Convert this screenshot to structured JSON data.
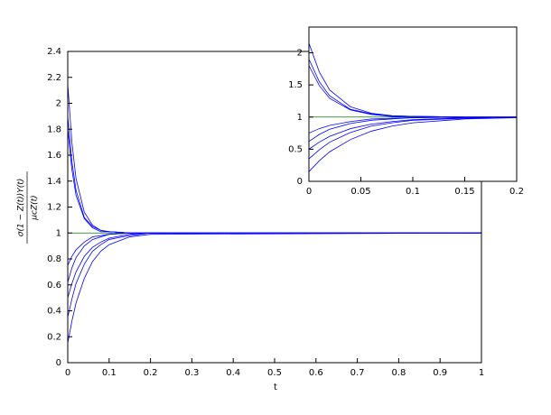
{
  "chart_data": [
    {
      "type": "line",
      "xlabel": "t",
      "ylabel": {
        "numerator": "σ(1 − Z(t))Y(t)",
        "denominator": "μcZ(t)"
      },
      "xlim": [
        0,
        1
      ],
      "ylim": [
        0,
        2.4
      ],
      "xticks": [
        0,
        0.1,
        0.2,
        0.3,
        0.4,
        0.5,
        0.6,
        0.7,
        0.8,
        0.9,
        1
      ],
      "yticks": [
        0,
        0.2,
        0.4,
        0.6,
        0.8,
        1,
        1.2,
        1.4,
        1.6,
        1.8,
        2,
        2.2,
        2.4
      ],
      "x": [
        0,
        0.01,
        0.02,
        0.04,
        0.06,
        0.08,
        0.1,
        0.15,
        0.2,
        1
      ],
      "series": [
        {
          "color": "#008000",
          "values": [
            1,
            1,
            1,
            1,
            1,
            1,
            1,
            1,
            1,
            1
          ]
        },
        {
          "color": "#0000ff",
          "values": [
            2.15,
            1.7,
            1.42,
            1.16,
            1.06,
            1.02,
            1.01,
            1.0,
            1.0,
            1.0
          ]
        },
        {
          "color": "#0000ff",
          "values": [
            1.9,
            1.55,
            1.33,
            1.12,
            1.05,
            1.02,
            1.01,
            1.0,
            1.0,
            1.0
          ]
        },
        {
          "color": "#0000ff",
          "values": [
            1.8,
            1.49,
            1.29,
            1.11,
            1.04,
            1.01,
            1.01,
            1.0,
            1.0,
            1.0
          ]
        },
        {
          "color": "#0000ff",
          "values": [
            0.75,
            0.82,
            0.87,
            0.93,
            0.97,
            0.98,
            0.99,
            1.0,
            1.0,
            1.0
          ]
        },
        {
          "color": "#0000ff",
          "values": [
            0.62,
            0.73,
            0.81,
            0.9,
            0.95,
            0.97,
            0.99,
            1.0,
            1.0,
            1.0
          ]
        },
        {
          "color": "#0000ff",
          "values": [
            0.5,
            0.61,
            0.7,
            0.82,
            0.89,
            0.93,
            0.96,
            0.99,
            1.0,
            1.0
          ]
        },
        {
          "color": "#0000ff",
          "values": [
            0.35,
            0.49,
            0.61,
            0.76,
            0.86,
            0.91,
            0.95,
            0.98,
            1.0,
            1.0
          ]
        },
        {
          "color": "#0000ff",
          "values": [
            0.15,
            0.32,
            0.46,
            0.65,
            0.78,
            0.86,
            0.91,
            0.97,
            0.99,
            1.0
          ]
        }
      ]
    },
    {
      "type": "line",
      "xlim": [
        0,
        0.2
      ],
      "ylim": [
        0,
        2.4
      ],
      "xticks": [
        0,
        0.05,
        0.1,
        0.15,
        0.2
      ],
      "yticks": [
        0,
        0.5,
        1,
        1.5,
        2
      ],
      "x": [
        0,
        0.01,
        0.02,
        0.04,
        0.06,
        0.08,
        0.1,
        0.15,
        0.2
      ],
      "series": [
        {
          "color": "#008000",
          "values": [
            1,
            1,
            1,
            1,
            1,
            1,
            1,
            1,
            1
          ]
        },
        {
          "color": "#0000ff",
          "values": [
            2.15,
            1.7,
            1.42,
            1.16,
            1.06,
            1.02,
            1.01,
            1.0,
            1.0
          ]
        },
        {
          "color": "#0000ff",
          "values": [
            1.9,
            1.55,
            1.33,
            1.12,
            1.05,
            1.02,
            1.01,
            1.0,
            1.0
          ]
        },
        {
          "color": "#0000ff",
          "values": [
            1.8,
            1.49,
            1.29,
            1.11,
            1.04,
            1.01,
            1.01,
            1.0,
            1.0
          ]
        },
        {
          "color": "#0000ff",
          "values": [
            0.75,
            0.82,
            0.87,
            0.93,
            0.97,
            0.98,
            0.99,
            1.0,
            1.0
          ]
        },
        {
          "color": "#0000ff",
          "values": [
            0.62,
            0.73,
            0.81,
            0.9,
            0.95,
            0.97,
            0.99,
            1.0,
            1.0
          ]
        },
        {
          "color": "#0000ff",
          "values": [
            0.5,
            0.61,
            0.7,
            0.82,
            0.89,
            0.93,
            0.96,
            0.99,
            1.0
          ]
        },
        {
          "color": "#0000ff",
          "values": [
            0.35,
            0.49,
            0.61,
            0.76,
            0.86,
            0.91,
            0.95,
            0.98,
            1.0
          ]
        },
        {
          "color": "#0000ff",
          "values": [
            0.15,
            0.32,
            0.46,
            0.65,
            0.78,
            0.86,
            0.91,
            0.97,
            0.99
          ]
        }
      ]
    }
  ]
}
